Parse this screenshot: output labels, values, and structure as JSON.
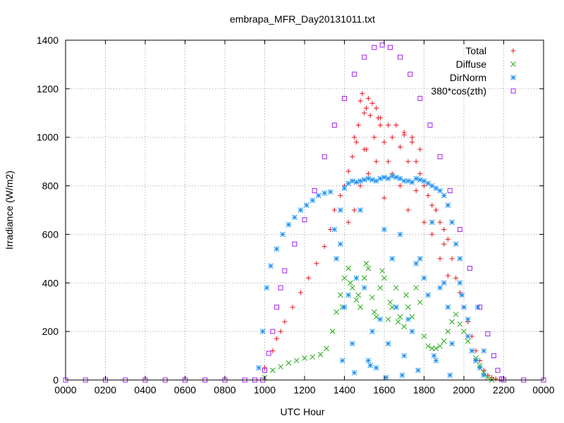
{
  "chart_data": {
    "type": "scatter",
    "title": "embrapa_MFR_Day20131011.txt",
    "xlabel": "UTC Hour",
    "ylabel": "Irradiance (W/m2)",
    "xlim": [
      0,
      2400
    ],
    "ylim": [
      0,
      1400
    ],
    "x_ticks": [
      "0000",
      "0200",
      "0400",
      "0600",
      "0800",
      "1000",
      "1200",
      "1400",
      "1600",
      "1800",
      "2000",
      "2200",
      "0000"
    ],
    "y_ticks": [
      "0",
      "200",
      "400",
      "600",
      "800",
      "1000",
      "1200",
      "1400"
    ],
    "grid": true,
    "legend_position": "top-right",
    "series": [
      {
        "name": "Total",
        "marker": "plus",
        "color": "#e8141b",
        "x": [
          1000,
          1040,
          1060,
          1080,
          1100,
          1140,
          1180,
          1220,
          1260,
          1300,
          1330,
          1350,
          1380,
          1400,
          1420,
          1440,
          1460,
          1470,
          1480,
          1490,
          1500,
          1510,
          1520,
          1530,
          1540,
          1550,
          1560,
          1570,
          1580,
          1600,
          1620,
          1640,
          1660,
          1680,
          1700,
          1720,
          1740,
          1760,
          1780,
          1800,
          1820,
          1840,
          1860,
          1880,
          1900,
          1920,
          1940,
          1960,
          1980,
          2000,
          2020,
          2040,
          2060,
          2080,
          2100,
          2120,
          2140,
          2160,
          2180,
          1420,
          1450,
          1480,
          1500,
          1520,
          1560,
          1600,
          1640,
          1680,
          1720,
          1760,
          1800,
          1840,
          1880,
          1920,
          1450,
          1510,
          1580,
          1620,
          1700,
          1740,
          1780,
          1860,
          1900
        ],
        "y": [
          50,
          120,
          170,
          200,
          240,
          300,
          360,
          420,
          480,
          550,
          620,
          700,
          760,
          800,
          860,
          920,
          980,
          1050,
          1150,
          1180,
          1100,
          1120,
          1160,
          1090,
          1140,
          1000,
          1120,
          1080,
          1050,
          980,
          1050,
          1000,
          1050,
          960,
          1010,
          900,
          980,
          900,
          850,
          800,
          760,
          720,
          700,
          650,
          620,
          580,
          500,
          420,
          360,
          300,
          240,
          180,
          120,
          80,
          40,
          20,
          10,
          5,
          0,
          650,
          700,
          800,
          950,
          850,
          900,
          750,
          850,
          800,
          700,
          780,
          650,
          600,
          500,
          430,
          1000,
          950,
          1080,
          900,
          1020,
          1000,
          950,
          700,
          560
        ]
      },
      {
        "name": "Diffuse",
        "marker": "cross",
        "color": "#23a814",
        "x": [
          1000,
          1040,
          1080,
          1120,
          1160,
          1200,
          1240,
          1280,
          1310,
          1340,
          1360,
          1380,
          1400,
          1420,
          1440,
          1460,
          1480,
          1500,
          1520,
          1540,
          1560,
          1580,
          1600,
          1620,
          1640,
          1660,
          1680,
          1700,
          1720,
          1740,
          1760,
          1780,
          1800,
          1820,
          1840,
          1860,
          1880,
          1900,
          1920,
          1940,
          1960,
          1980,
          2000,
          2020,
          2040,
          2060,
          2080,
          2100,
          2120,
          2140,
          1390,
          1430,
          1470,
          1510,
          1550,
          1590,
          1630,
          1670,
          1710
        ],
        "y": [
          10,
          40,
          55,
          70,
          80,
          90,
          95,
          105,
          130,
          200,
          280,
          350,
          420,
          460,
          380,
          330,
          300,
          420,
          460,
          340,
          260,
          380,
          420,
          250,
          300,
          380,
          260,
          220,
          300,
          260,
          380,
          320,
          180,
          140,
          130,
          130,
          140,
          160,
          200,
          240,
          270,
          230,
          200,
          160,
          120,
          90,
          60,
          30,
          10,
          0,
          300,
          400,
          350,
          480,
          280,
          450,
          320,
          240,
          350
        ]
      },
      {
        "name": "DirNorm",
        "marker": "star",
        "color": "#1e90ee",
        "x": [
          970,
          990,
          1010,
          1030,
          1060,
          1090,
          1120,
          1150,
          1180,
          1210,
          1240,
          1270,
          1300,
          1330,
          1350,
          1380,
          1400,
          1420,
          1440,
          1460,
          1480,
          1500,
          1520,
          1540,
          1560,
          1580,
          1600,
          1620,
          1640,
          1660,
          1680,
          1700,
          1720,
          1740,
          1760,
          1780,
          1800,
          1820,
          1840,
          1860,
          1880,
          1900,
          1920,
          1940,
          1960,
          1980,
          2000,
          2020,
          2040,
          2060,
          2080,
          2100,
          1400,
          1440,
          1480,
          1520,
          1560,
          1600,
          1640,
          1680,
          1720,
          1760,
          1800,
          1840,
          1880,
          1920,
          1360,
          1380,
          1420,
          1460,
          1500,
          1540,
          1580,
          1620,
          1660,
          1700,
          1740,
          1780,
          1820,
          1860,
          1900,
          1940,
          1980,
          2020,
          2060,
          2100,
          1390,
          1450,
          1530,
          1610,
          1690,
          1770,
          1850,
          1930,
          1990,
          2070
        ],
        "y": [
          50,
          200,
          380,
          470,
          540,
          600,
          640,
          670,
          700,
          720,
          740,
          760,
          770,
          775,
          620,
          700,
          790,
          810,
          820,
          815,
          820,
          825,
          830,
          825,
          820,
          830,
          835,
          830,
          840,
          835,
          830,
          820,
          820,
          815,
          830,
          825,
          820,
          810,
          800,
          790,
          780,
          760,
          720,
          650,
          560,
          400,
          300,
          180,
          120,
          80,
          50,
          20,
          300,
          150,
          700,
          80,
          50,
          620,
          500,
          600,
          250,
          480,
          420,
          650,
          380,
          300,
          500,
          560,
          350,
          420,
          380,
          200,
          250,
          150,
          300,
          100,
          200,
          500,
          350,
          80,
          400,
          150,
          500,
          250,
          80,
          120,
          80,
          30,
          60,
          10,
          20,
          40,
          100,
          20,
          350,
          300
        ]
      },
      {
        "name": "380*cos(zth)",
        "marker": "square",
        "color": "#a020f0",
        "x": [
          0,
          100,
          200,
          300,
          400,
          500,
          600,
          700,
          800,
          900,
          950,
          990,
          1000,
          1020,
          1040,
          1060,
          1080,
          1100,
          1150,
          1200,
          1250,
          1300,
          1350,
          1400,
          1450,
          1500,
          1550,
          1590,
          1630,
          1680,
          1730,
          1780,
          1830,
          1880,
          1930,
          1980,
          2030,
          2080,
          2120,
          2150,
          2170,
          2190,
          2200,
          2300,
          2400
        ],
        "y": [
          0,
          0,
          0,
          0,
          0,
          0,
          0,
          0,
          0,
          0,
          0,
          0,
          40,
          110,
          200,
          300,
          380,
          450,
          560,
          660,
          780,
          920,
          1050,
          1160,
          1260,
          1330,
          1370,
          1380,
          1370,
          1330,
          1260,
          1160,
          1050,
          920,
          780,
          620,
          460,
          300,
          190,
          100,
          40,
          5,
          0,
          0,
          0
        ]
      }
    ]
  }
}
